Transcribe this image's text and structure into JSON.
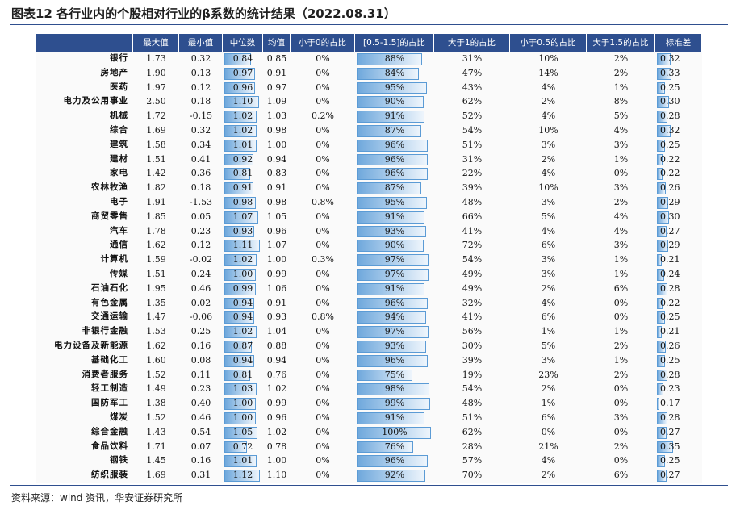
{
  "title": "图表12 各行业内的个股相对行业的β系数的统计结果（2022.08.31）",
  "table": {
    "header": [
      "最大值",
      "最小值",
      "中位数",
      "均值",
      "小于0的占比",
      "[0.5-1.5]的占比",
      "大于1的占比",
      "小于0.5的占比",
      "大于1.5的占比",
      "标准差"
    ],
    "rows": [
      [
        "银行",
        "1.73",
        "0.32",
        "0.84",
        "0.85",
        "0%",
        "88%",
        "31%",
        "10%",
        "2%",
        "0.32"
      ],
      [
        "房地产",
        "1.90",
        "0.13",
        "0.97",
        "0.91",
        "0%",
        "84%",
        "47%",
        "14%",
        "2%",
        "0.33"
      ],
      [
        "医药",
        "1.97",
        "0.12",
        "0.96",
        "0.97",
        "0%",
        "95%",
        "43%",
        "4%",
        "1%",
        "0.25"
      ],
      [
        "电力及公用事业",
        "2.50",
        "0.18",
        "1.10",
        "1.09",
        "0%",
        "90%",
        "62%",
        "2%",
        "8%",
        "0.30"
      ],
      [
        "机械",
        "1.72",
        "-0.15",
        "1.02",
        "1.03",
        "0.2%",
        "91%",
        "52%",
        "4%",
        "5%",
        "0.28"
      ],
      [
        "综合",
        "1.69",
        "0.32",
        "1.02",
        "0.98",
        "0%",
        "87%",
        "54%",
        "10%",
        "4%",
        "0.32"
      ],
      [
        "建筑",
        "1.58",
        "0.34",
        "1.01",
        "1.00",
        "0%",
        "96%",
        "51%",
        "3%",
        "3%",
        "0.25"
      ],
      [
        "建材",
        "1.51",
        "0.41",
        "0.92",
        "0.94",
        "0%",
        "96%",
        "31%",
        "2%",
        "1%",
        "0.22"
      ],
      [
        "家电",
        "1.42",
        "0.36",
        "0.81",
        "0.83",
        "0%",
        "96%",
        "22%",
        "4%",
        "0%",
        "0.22"
      ],
      [
        "农林牧渔",
        "1.82",
        "0.18",
        "0.91",
        "0.91",
        "0%",
        "87%",
        "39%",
        "10%",
        "3%",
        "0.26"
      ],
      [
        "电子",
        "1.91",
        "-1.53",
        "0.98",
        "0.98",
        "0.8%",
        "95%",
        "48%",
        "3%",
        "2%",
        "0.29"
      ],
      [
        "商贸零售",
        "1.85",
        "0.05",
        "1.07",
        "1.05",
        "0%",
        "91%",
        "66%",
        "5%",
        "4%",
        "0.30"
      ],
      [
        "汽车",
        "1.78",
        "0.23",
        "0.93",
        "0.96",
        "0%",
        "93%",
        "41%",
        "4%",
        "4%",
        "0.27"
      ],
      [
        "通信",
        "1.62",
        "0.12",
        "1.11",
        "1.07",
        "0%",
        "90%",
        "72%",
        "6%",
        "3%",
        "0.29"
      ],
      [
        "计算机",
        "1.59",
        "-0.02",
        "1.02",
        "1.00",
        "0.3%",
        "97%",
        "54%",
        "3%",
        "1%",
        "0.21"
      ],
      [
        "传媒",
        "1.51",
        "0.24",
        "1.00",
        "0.99",
        "0%",
        "97%",
        "49%",
        "3%",
        "1%",
        "0.24"
      ],
      [
        "石油石化",
        "1.95",
        "0.46",
        "0.99",
        "1.06",
        "0%",
        "91%",
        "49%",
        "2%",
        "6%",
        "0.28"
      ],
      [
        "有色金属",
        "1.35",
        "0.02",
        "0.94",
        "0.91",
        "0%",
        "96%",
        "32%",
        "4%",
        "0%",
        "0.22"
      ],
      [
        "交通运输",
        "1.47",
        "-0.06",
        "0.94",
        "0.93",
        "0.8%",
        "94%",
        "41%",
        "6%",
        "0%",
        "0.25"
      ],
      [
        "非银行金融",
        "1.53",
        "0.25",
        "1.02",
        "1.04",
        "0%",
        "97%",
        "56%",
        "1%",
        "1%",
        "0.21"
      ],
      [
        "电力设备及新能源",
        "1.62",
        "0.16",
        "0.87",
        "0.88",
        "0%",
        "93%",
        "30%",
        "5%",
        "2%",
        "0.26"
      ],
      [
        "基础化工",
        "1.60",
        "0.08",
        "0.94",
        "0.94",
        "0%",
        "96%",
        "39%",
        "3%",
        "1%",
        "0.25"
      ],
      [
        "消费者服务",
        "1.52",
        "0.11",
        "0.81",
        "0.76",
        "0%",
        "75%",
        "19%",
        "23%",
        "2%",
        "0.28"
      ],
      [
        "轻工制造",
        "1.49",
        "0.23",
        "1.03",
        "1.02",
        "0%",
        "98%",
        "54%",
        "2%",
        "0%",
        "0.23"
      ],
      [
        "国防军工",
        "1.38",
        "0.40",
        "1.00",
        "0.99",
        "0%",
        "99%",
        "48%",
        "1%",
        "0%",
        "0.17"
      ],
      [
        "煤炭",
        "1.52",
        "0.46",
        "1.00",
        "0.96",
        "0%",
        "91%",
        "51%",
        "6%",
        "3%",
        "0.28"
      ],
      [
        "综合金融",
        "1.43",
        "0.54",
        "1.05",
        "1.02",
        "0%",
        "100%",
        "62%",
        "0%",
        "0%",
        "0.27"
      ],
      [
        "食品饮料",
        "1.71",
        "0.07",
        "0.72",
        "0.78",
        "0%",
        "76%",
        "28%",
        "21%",
        "2%",
        "0.35"
      ],
      [
        "钢铁",
        "1.45",
        "0.16",
        "1.01",
        "1.00",
        "0%",
        "96%",
        "57%",
        "4%",
        "0%",
        "0.25"
      ],
      [
        "纺织服装",
        "1.69",
        "0.31",
        "1.12",
        "1.10",
        "0%",
        "92%",
        "70%",
        "2%",
        "6%",
        "0.27"
      ]
    ]
  },
  "source": "资料来源：wind 资讯，华安证券研究所"
}
